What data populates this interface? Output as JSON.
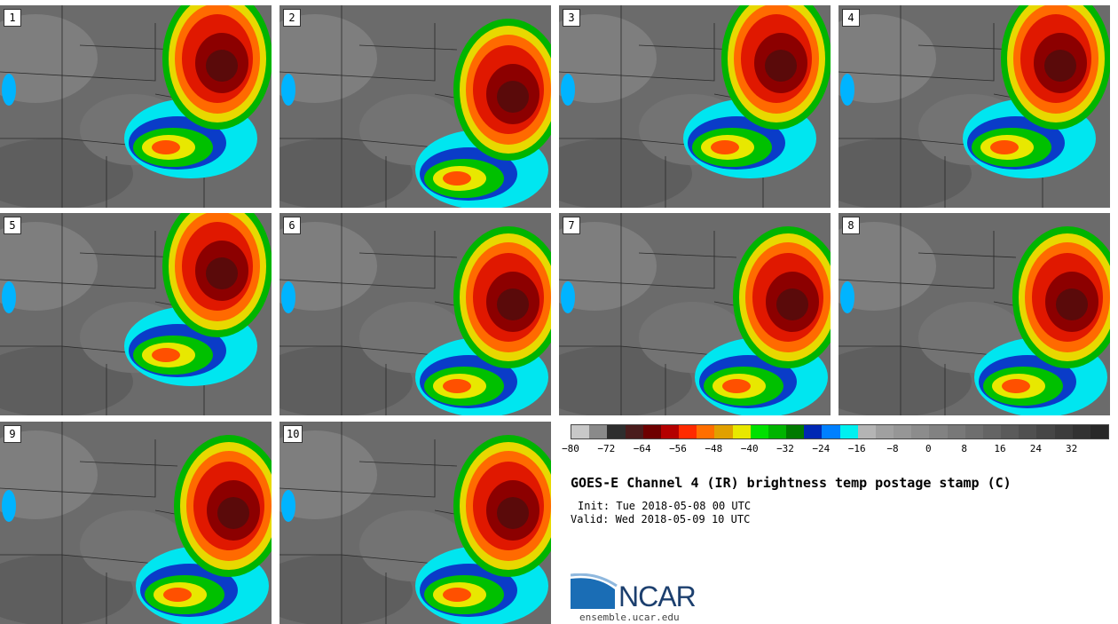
{
  "panels": [
    {
      "label": "1",
      "storm": "ne"
    },
    {
      "label": "2",
      "storm": "e"
    },
    {
      "label": "3",
      "storm": "ne"
    },
    {
      "label": "4",
      "storm": "ne"
    },
    {
      "label": "5",
      "storm": "ne"
    },
    {
      "label": "6",
      "storm": "e"
    },
    {
      "label": "7",
      "storm": "e"
    },
    {
      "label": "8",
      "storm": "e"
    },
    {
      "label": "9",
      "storm": "e"
    },
    {
      "label": "10",
      "storm": "e"
    }
  ],
  "colorbar": {
    "colors": [
      "#c8c8c8",
      "#8a8a8a",
      "#2e2e2e",
      "#4a1c1c",
      "#6e0000",
      "#b40000",
      "#ff2a00",
      "#ff6e00",
      "#e0a000",
      "#e8e800",
      "#00e000",
      "#00b400",
      "#007a00",
      "#0028b4",
      "#0080ff",
      "#00f0f0",
      "#b4b4b4",
      "#a0a0a0",
      "#969696",
      "#8c8c8c",
      "#828282",
      "#787878",
      "#6e6e6e",
      "#646464",
      "#5a5a5a",
      "#505050",
      "#464646",
      "#3c3c3c",
      "#323232",
      "#282828"
    ],
    "ticks": [
      "−80",
      "−72",
      "−64",
      "−56",
      "−48",
      "−40",
      "−32",
      "−24",
      "−16",
      "−8",
      "0",
      "8",
      "16",
      "24",
      "32"
    ]
  },
  "title": "GOES-E Channel 4 (IR) brightness temp postage stamp (C)",
  "init": "Init: Tue 2018-05-08 00 UTC",
  "valid": "Valid: Wed 2018-05-09 10 UTC",
  "logo": {
    "text": "NCAR",
    "site": "ensemble.ucar.edu"
  }
}
